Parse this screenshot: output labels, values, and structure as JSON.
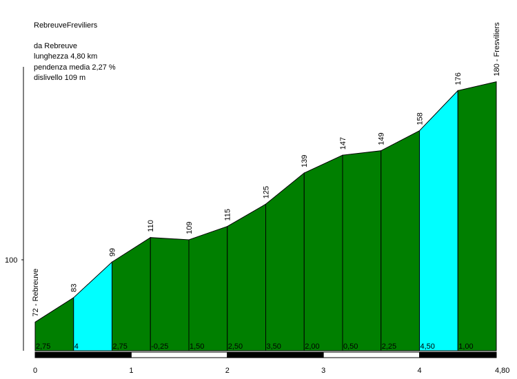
{
  "title": "RebreuveFreviliers",
  "info": {
    "start": "da Rebreuve",
    "length": "lunghezza 4,80 km",
    "avg_gradient": "pendenza media 2,27 %",
    "elevation_gain": "dislivello 109 m"
  },
  "colors": {
    "segment_normal": "#007f00",
    "segment_steep": "#00ffff",
    "outline": "#000000",
    "scale_dark": "#000000",
    "scale_light": "#ffffff"
  },
  "chart_data": {
    "type": "area",
    "title": "RebreuveFreviliers",
    "xlabel": "",
    "ylabel": "",
    "xlim": [
      0,
      4.8
    ],
    "ylim": [
      56,
      186
    ],
    "x_ticks": [
      {
        "value": 0,
        "label": "0"
      },
      {
        "value": 1,
        "label": "1"
      },
      {
        "value": 2,
        "label": "2"
      },
      {
        "value": 3,
        "label": "3"
      },
      {
        "value": 4,
        "label": "4"
      },
      {
        "value": 4.8,
        "label": "4,80"
      }
    ],
    "y_ticks": [
      {
        "value": 100,
        "label": "100"
      }
    ],
    "points": [
      {
        "x": 0,
        "y": 72,
        "label": "72 - Rebreuve"
      },
      {
        "x": 0.4,
        "y": 83,
        "label": "83"
      },
      {
        "x": 0.8,
        "y": 99,
        "label": "99"
      },
      {
        "x": 1.2,
        "y": 110,
        "label": "110"
      },
      {
        "x": 1.6,
        "y": 109,
        "label": "109"
      },
      {
        "x": 2.0,
        "y": 115,
        "label": "115"
      },
      {
        "x": 2.4,
        "y": 125,
        "label": "125"
      },
      {
        "x": 2.8,
        "y": 139,
        "label": "139"
      },
      {
        "x": 3.2,
        "y": 147,
        "label": "147"
      },
      {
        "x": 3.6,
        "y": 149,
        "label": "149"
      },
      {
        "x": 4.0,
        "y": 158,
        "label": "158"
      },
      {
        "x": 4.4,
        "y": 176,
        "label": "176"
      },
      {
        "x": 4.8,
        "y": 180,
        "label": "180 - Fresviliers"
      }
    ],
    "segments": [
      {
        "gradient": "2,75",
        "steep": false
      },
      {
        "gradient": "4",
        "steep": true
      },
      {
        "gradient": "2,75",
        "steep": false
      },
      {
        "gradient": "-0,25",
        "steep": false
      },
      {
        "gradient": "1,50",
        "steep": false
      },
      {
        "gradient": "2,50",
        "steep": false
      },
      {
        "gradient": "3,50",
        "steep": false
      },
      {
        "gradient": "2,00",
        "steep": false
      },
      {
        "gradient": "0,50",
        "steep": false
      },
      {
        "gradient": "2,25",
        "steep": false
      },
      {
        "gradient": "4,50",
        "steep": true
      },
      {
        "gradient": "1,00",
        "steep": false
      }
    ]
  }
}
